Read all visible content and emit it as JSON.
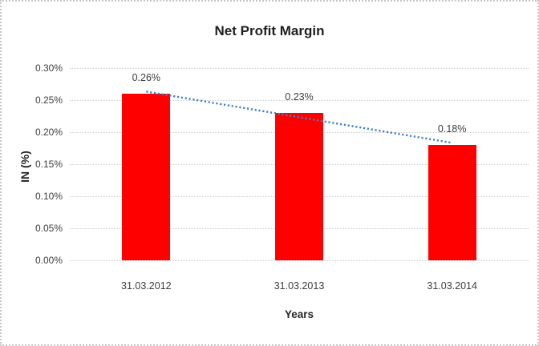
{
  "chart_data": {
    "type": "bar",
    "title": "Net Profit Margin",
    "xlabel": "Years",
    "ylabel": "IN (%)",
    "categories": [
      "31.03.2012",
      "31.03.2013",
      "31.03.2014"
    ],
    "values": [
      0.26,
      0.23,
      0.18
    ],
    "data_labels": [
      "0.26%",
      "0.23%",
      "0.18%"
    ],
    "y_ticks": [
      {
        "value": 0.3,
        "label": "0.30%"
      },
      {
        "value": 0.25,
        "label": "0.25%"
      },
      {
        "value": 0.2,
        "label": "0.20%"
      },
      {
        "value": 0.15,
        "label": "0.15%"
      },
      {
        "value": 0.1,
        "label": "0.10%"
      },
      {
        "value": 0.05,
        "label": "0.05%"
      },
      {
        "value": 0.0,
        "label": "0.00%"
      }
    ],
    "ylim": [
      0,
      0.3
    ],
    "grid": true,
    "gridline_style": "dotted",
    "legend_position": "none",
    "bar_color": "#ff0000",
    "gridline_color": "#cdcdcd",
    "text_color": "#3d3d3d",
    "title_color": "#1f1f1f",
    "frame_border_color": "#c6c6c6",
    "trendline": {
      "type": "linear",
      "style": "dotted",
      "color": "#4080c8",
      "start_value": 0.2633,
      "end_value": 0.1833
    }
  }
}
